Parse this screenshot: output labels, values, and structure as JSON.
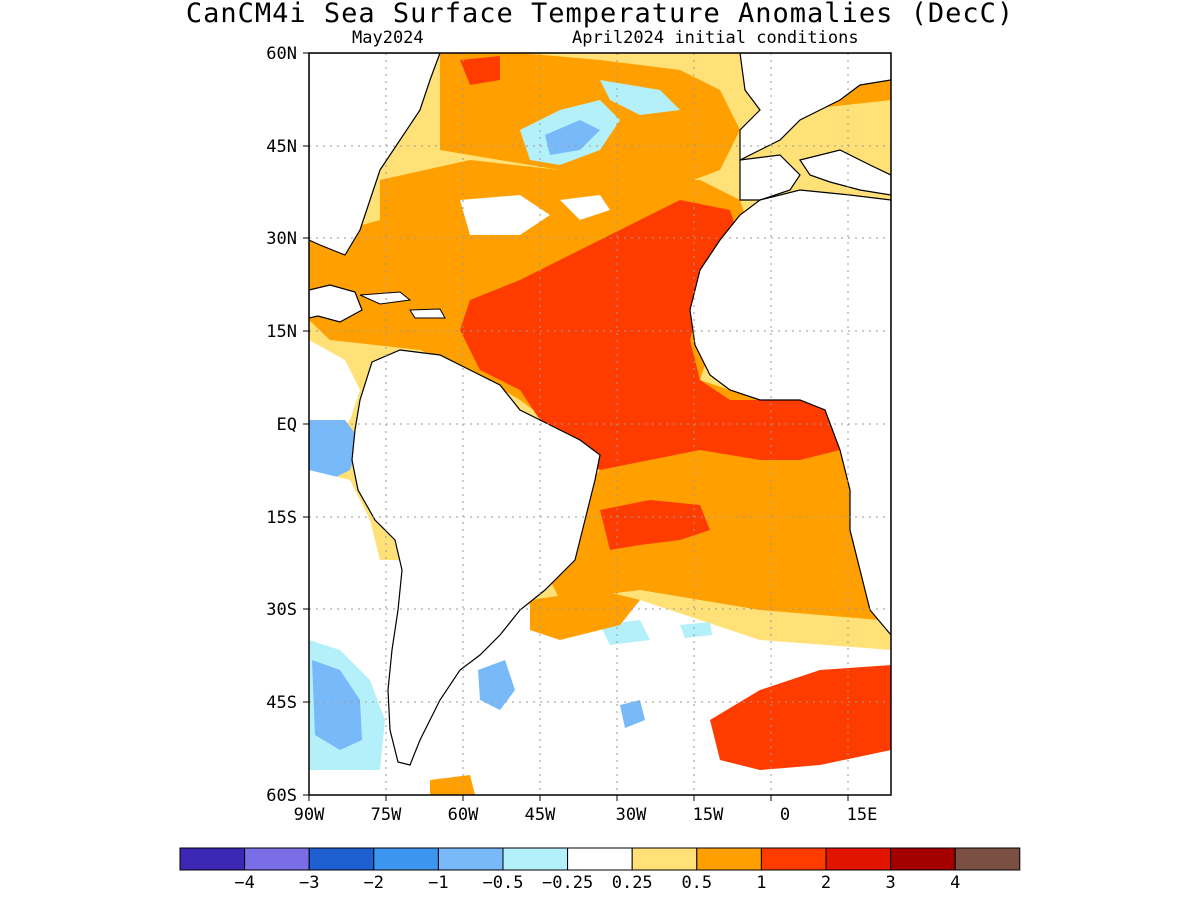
{
  "title": "CanCM4i Sea Surface Temperature Anomalies (DecC)",
  "subtitle_left": "May2024",
  "subtitle_right": "April2024 initial conditions",
  "map": {
    "lat_labels": [
      "60N",
      "45N",
      "30N",
      "15N",
      "EQ",
      "15S",
      "30S",
      "45S",
      "60S"
    ],
    "lon_labels": [
      "90W",
      "75W",
      "60W",
      "45W",
      "30W",
      "15W",
      "0",
      "15E"
    ],
    "lat_range": [
      -60,
      60
    ],
    "lon_range": [
      -90,
      18
    ],
    "gridlines": "dotted"
  },
  "colorbar": {
    "colors": [
      "#3c28b4",
      "#7a6ee6",
      "#1e5fd2",
      "#3c96f0",
      "#78b9fa",
      "#b4f0fa",
      "#ffffff",
      "#ffe178",
      "#ffa000",
      "#ff3c00",
      "#e11400",
      "#a50000",
      "#7a5044"
    ],
    "labels": [
      "-4",
      "-3",
      "-2",
      "-1",
      "-0.5",
      "-0.25",
      "0.25",
      "0.5",
      "1",
      "2",
      "3",
      "4"
    ]
  }
}
